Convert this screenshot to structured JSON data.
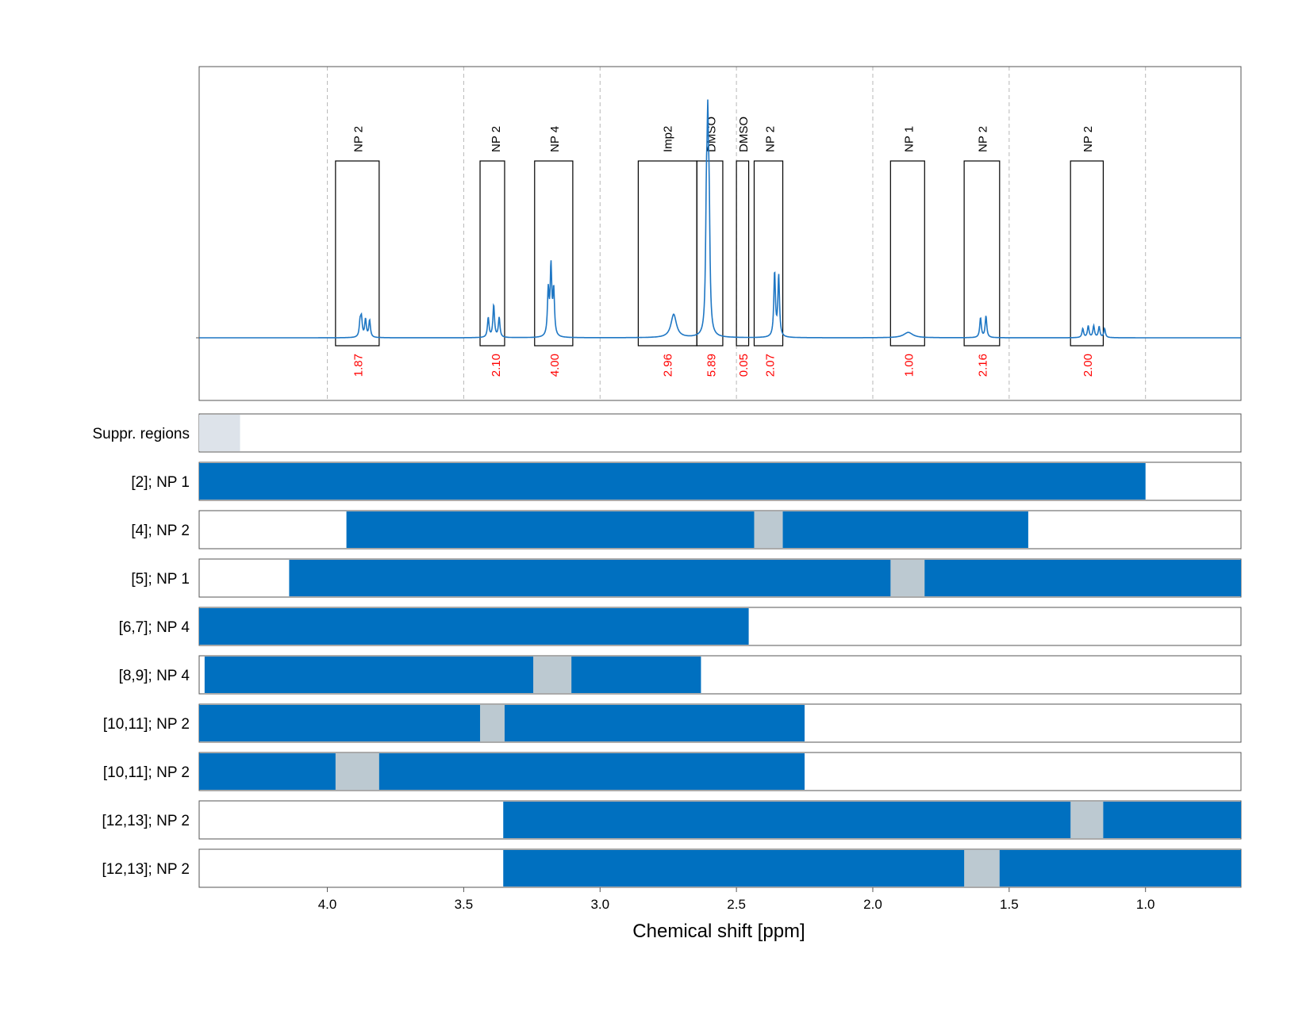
{
  "chart_data": {
    "type": "nmr-spectrum-with-integration-ranges",
    "xlabel": "Chemical shift [ppm]",
    "xlim": [
      4.47,
      0.65
    ],
    "x_ticks": [
      4.0,
      3.5,
      3.0,
      2.5,
      2.0,
      1.5,
      1.0
    ],
    "x_tick_labels": [
      "4.0",
      "3.5",
      "3.0",
      "2.5",
      "2.0",
      "1.5",
      "1.0"
    ],
    "colors": {
      "spectrum": "#1f77c4",
      "bar": "#0070c0",
      "excluded": "#bcc9d1",
      "suppressed": "#dde3ea",
      "integral": "#ff0000",
      "box": "#000000"
    },
    "peaks": [
      {
        "ppm": 3.88,
        "h": 0.08
      },
      {
        "ppm": 3.875,
        "h": 0.1
      },
      {
        "ppm": 3.86,
        "h": 0.1
      },
      {
        "ppm": 3.845,
        "h": 0.095
      },
      {
        "ppm": 3.41,
        "h": 0.11
      },
      {
        "ppm": 3.39,
        "h": 0.18
      },
      {
        "ppm": 3.37,
        "h": 0.11
      },
      {
        "ppm": 3.19,
        "h": 0.25
      },
      {
        "ppm": 3.18,
        "h": 0.38
      },
      {
        "ppm": 3.17,
        "h": 0.25
      },
      {
        "ppm": 2.73,
        "h": 0.13,
        "w": 0.012
      },
      {
        "ppm": 2.605,
        "h": 0.95
      },
      {
        "ppm": 2.61,
        "h": 0.6
      },
      {
        "ppm": 2.6,
        "h": 0.55
      },
      {
        "ppm": 2.36,
        "h": 0.36
      },
      {
        "ppm": 2.345,
        "h": 0.34
      },
      {
        "ppm": 1.87,
        "h": 0.03,
        "w": 0.02
      },
      {
        "ppm": 1.605,
        "h": 0.11
      },
      {
        "ppm": 1.585,
        "h": 0.12
      },
      {
        "ppm": 1.23,
        "h": 0.05
      },
      {
        "ppm": 1.21,
        "h": 0.065
      },
      {
        "ppm": 1.19,
        "h": 0.065
      },
      {
        "ppm": 1.17,
        "h": 0.06
      },
      {
        "ppm": 1.15,
        "h": 0.05
      }
    ],
    "annotations": [
      {
        "label": "NP 2",
        "integral": "1.87",
        "range": [
          3.97,
          3.81
        ],
        "label_ppm": 3.89,
        "box_top": 0.62
      },
      {
        "label": "NP 2",
        "integral": "2.10",
        "range": [
          3.44,
          3.35
        ],
        "label_ppm": 3.385,
        "box_top": 0.62
      },
      {
        "label": "NP 4",
        "integral": "4.00",
        "range": [
          3.24,
          3.1
        ],
        "label_ppm": 3.17,
        "box_top": 0.62
      },
      {
        "label": "Imp2",
        "integral": "2.96",
        "range": [
          2.86,
          2.645
        ],
        "label_ppm": 2.755,
        "box_top": 0.62
      },
      {
        "label": "DMSO",
        "integral": "5.89",
        "range": [
          2.645,
          2.55
        ],
        "label_ppm": 2.595,
        "box_top": 0.62
      },
      {
        "label": "DMSO",
        "integral": "0.05",
        "range": [
          2.5,
          2.455
        ],
        "label_ppm": 2.477,
        "box_top": 0.62
      },
      {
        "label": "NP 2",
        "integral": "2.07",
        "range": [
          2.435,
          2.33
        ],
        "label_ppm": 2.38,
        "box_top": 0.62
      },
      {
        "label": "NP 1",
        "integral": "1.00",
        "range": [
          1.935,
          1.81
        ],
        "label_ppm": 1.87,
        "box_top": 0.62
      },
      {
        "label": "NP 2",
        "integral": "2.16",
        "range": [
          1.665,
          1.535
        ],
        "label_ppm": 1.6,
        "box_top": 0.62
      },
      {
        "label": "NP 2",
        "integral": "2.00",
        "range": [
          1.275,
          1.155
        ],
        "label_ppm": 1.215,
        "box_top": 0.62
      }
    ],
    "rows": [
      {
        "label": "Suppr. regions",
        "bars": [],
        "excluded": [],
        "suppressed": [
          [
            4.47,
            4.32
          ]
        ]
      },
      {
        "label": "[2]; NP 1",
        "bars": [
          [
            4.47,
            1.0
          ]
        ],
        "excluded": []
      },
      {
        "label": "[4]; NP 2",
        "bars": [
          [
            3.93,
            1.43
          ]
        ],
        "excluded": [
          [
            2.435,
            2.33
          ]
        ]
      },
      {
        "label": "[5]; NP 1",
        "bars": [
          [
            4.14,
            0.65
          ]
        ],
        "excluded": [
          [
            1.935,
            1.81
          ]
        ]
      },
      {
        "label": "[6,7]; NP 4",
        "bars": [
          [
            4.47,
            2.455
          ]
        ],
        "excluded": []
      },
      {
        "label": "[8,9]; NP 4",
        "bars": [
          [
            4.45,
            2.63
          ]
        ],
        "excluded": [
          [
            3.245,
            3.105
          ]
        ]
      },
      {
        "label": "[10,11]; NP 2",
        "bars": [
          [
            4.47,
            2.25
          ]
        ],
        "excluded": [
          [
            3.44,
            3.35
          ]
        ]
      },
      {
        "label": "[10,11]; NP 2",
        "bars": [
          [
            4.47,
            2.25
          ]
        ],
        "excluded": [
          [
            3.97,
            3.81
          ]
        ]
      },
      {
        "label": "[12,13]; NP 2",
        "bars": [
          [
            3.355,
            0.65
          ]
        ],
        "excluded": [
          [
            1.275,
            1.155
          ]
        ]
      },
      {
        "label": "[12,13]; NP 2",
        "bars": [
          [
            3.355,
            0.65
          ]
        ],
        "excluded": [
          [
            1.665,
            1.535
          ]
        ]
      }
    ]
  }
}
